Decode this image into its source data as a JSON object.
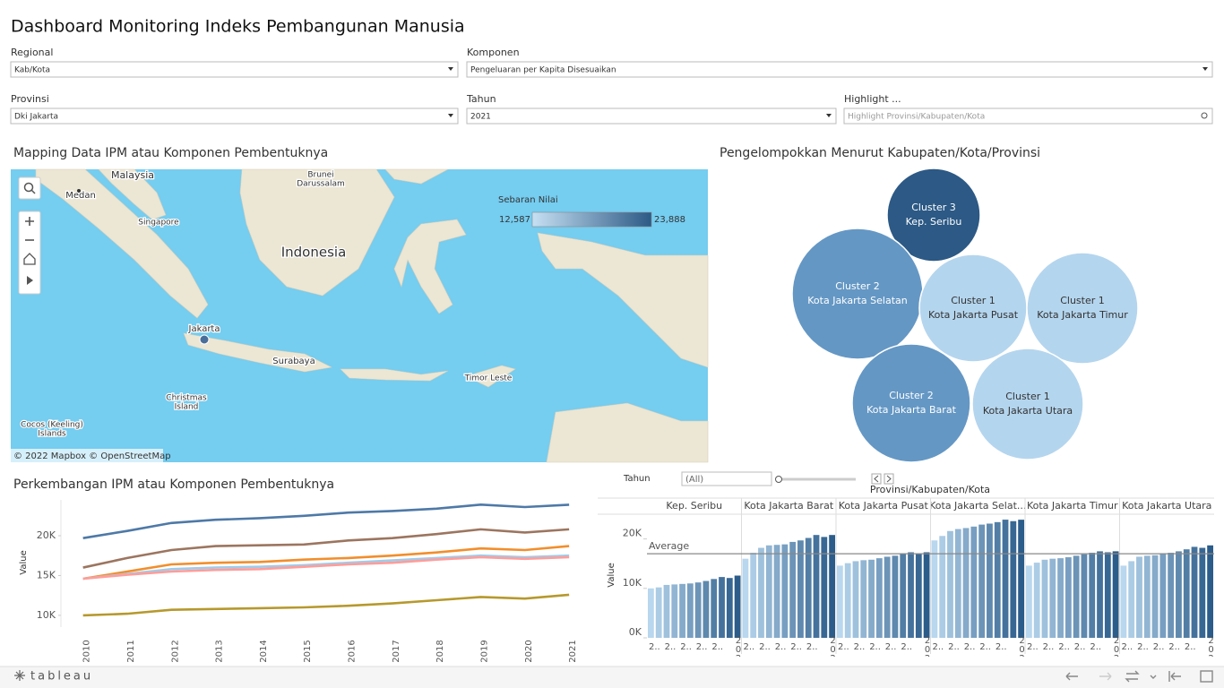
{
  "header": {
    "title": "Dashboard Monitoring Indeks Pembangunan Manusia"
  },
  "filters": [
    {
      "label": "Regional",
      "value": "Kab/Kota"
    },
    {
      "label": "Komponen",
      "value": "Pengeluaran per Kapita Disesuaikan"
    },
    {
      "label": "Provinsi",
      "value": "Dki Jakarta"
    },
    {
      "label": "Tahun",
      "value": "2021"
    },
    {
      "label": "Highlight ...",
      "placeholder": "Highlight Provinsi/Kabupaten/Kota"
    }
  ],
  "map": {
    "title": "Mapping Data IPM atau Komponen Pembentuknya",
    "legend": {
      "title": "Sebaran Nilai",
      "min": {
        "value": 12587,
        "label": "12,587"
      },
      "max": {
        "value": 23888,
        "label": "23,888"
      },
      "colors": [
        "#c6e0f3",
        "#2c5985"
      ]
    },
    "places": [
      {
        "lines": [
          "Malaysia"
        ]
      },
      {
        "lines": [
          "Medan"
        ]
      },
      {
        "lines": [
          "Brunei",
          "Darussalam"
        ]
      },
      {
        "lines": [
          "Singapore"
        ]
      },
      {
        "lines": [
          "Indonesia"
        ]
      },
      {
        "lines": [
          "Jakarta"
        ]
      },
      {
        "lines": [
          "Surabaya"
        ]
      },
      {
        "lines": [
          "Timor Leste"
        ]
      },
      {
        "lines": [
          "Christmas",
          "Island"
        ]
      },
      {
        "lines": [
          "Cocos (Keeling)",
          "Islands"
        ]
      }
    ],
    "attribution": "© 2022 Mapbox  © OpenStreetMap"
  },
  "clusters": {
    "title": "Pengelompokkan Menurut Kabupaten/Kota/Provinsi",
    "colors": {
      "Cluster 1": "#b4d5ee",
      "Cluster 2": "#6497c4",
      "Cluster 3": "#2c5985"
    },
    "nodes": [
      {
        "cluster": "Cluster 3",
        "name": "Kep. Seribu"
      },
      {
        "cluster": "Cluster 2",
        "name": "Kota Jakarta Selatan"
      },
      {
        "cluster": "Cluster 1",
        "name": "Kota Jakarta Pusat"
      },
      {
        "cluster": "Cluster 1",
        "name": "Kota Jakarta Timur"
      },
      {
        "cluster": "Cluster 2",
        "name": "Kota Jakarta Barat"
      },
      {
        "cluster": "Cluster 1",
        "name": "Kota Jakarta Utara"
      }
    ]
  },
  "chart_data": [
    {
      "type": "line",
      "title": "Perkembangan IPM atau Komponen Pembentuknya",
      "y_label": "Value",
      "x": [
        2010,
        2011,
        2012,
        2013,
        2014,
        2015,
        2016,
        2017,
        2018,
        2019,
        2020,
        2021
      ],
      "xlim": [
        2009.5,
        2021.2
      ],
      "xticks": [
        2010,
        2011,
        2012,
        2013,
        2014,
        2015,
        2016,
        2017,
        2018,
        2019,
        2020,
        2021
      ],
      "ylim": [
        6500,
        24500
      ],
      "yticks": [
        {
          "value": 10000,
          "label": "10K"
        },
        {
          "value": 15000,
          "label": "15K"
        },
        {
          "value": 20000,
          "label": "20K"
        }
      ],
      "series": [
        {
          "color": "#4e79a7",
          "values": [
            19700,
            20600,
            21600,
            22000,
            22200,
            22500,
            22900,
            23100,
            23400,
            23900,
            23600,
            23888
          ]
        },
        {
          "color": "#9c755f",
          "values": [
            16000,
            17200,
            18200,
            18700,
            18800,
            18900,
            19400,
            19700,
            20200,
            20800,
            20400,
            20800
          ]
        },
        {
          "color": "#f28e2b",
          "values": [
            14600,
            15500,
            16400,
            16600,
            16700,
            17000,
            17200,
            17500,
            17900,
            18400,
            18200,
            18700
          ]
        },
        {
          "color": "#a0cbe8",
          "values": [
            14600,
            15200,
            15800,
            16000,
            16100,
            16300,
            16600,
            16900,
            17200,
            17500,
            17300,
            17500
          ]
        },
        {
          "color": "#ff9d9a",
          "values": [
            14600,
            15100,
            15500,
            15700,
            15800,
            16100,
            16400,
            16600,
            17000,
            17300,
            17100,
            17300
          ]
        },
        {
          "color": "#b6992d",
          "values": [
            10000,
            10200,
            10700,
            10800,
            10900,
            11000,
            11200,
            11500,
            11900,
            12300,
            12100,
            12587
          ]
        }
      ]
    },
    {
      "type": "bar",
      "header": "Provinsi/Kabupaten/Kota",
      "filter_label": "Tahun",
      "filter_value": "(All)",
      "y_label": "Value",
      "x": [
        2010,
        2011,
        2012,
        2013,
        2014,
        2015,
        2016,
        2017,
        2018,
        2019,
        2020,
        2021
      ],
      "xticks": [
        {
          "value": 2010,
          "label": "2.."
        },
        {
          "value": 2012,
          "label": "2.."
        },
        {
          "value": 2014,
          "label": "2.."
        },
        {
          "value": 2016,
          "label": "2.."
        },
        {
          "value": 2018,
          "label": "2.."
        },
        2021
      ],
      "ylim": [
        0,
        25000
      ],
      "yticks": [
        {
          "value": 0,
          "label": "0K"
        },
        {
          "value": 10000,
          "label": "10K"
        },
        {
          "value": 20000,
          "label": "20K"
        }
      ],
      "average": {
        "label": "Average",
        "value": 17000
      },
      "colors": [
        "#b9d7ee",
        "#2b5c8a"
      ],
      "panels": [
        {
          "name": "Kep. Seribu",
          "values": [
            10000,
            10200,
            10700,
            10800,
            10900,
            11000,
            11200,
            11500,
            11900,
            12300,
            12100,
            12587
          ]
        },
        {
          "name": "Kota Jakarta Barat",
          "values": [
            16000,
            17200,
            18200,
            18700,
            18800,
            18900,
            19400,
            19700,
            20200,
            20800,
            20400,
            20800
          ]
        },
        {
          "name": "Kota Jakarta Pusat",
          "values": [
            14600,
            15100,
            15500,
            15700,
            15800,
            16100,
            16400,
            16600,
            17000,
            17300,
            17100,
            17300
          ]
        },
        {
          "name": "Kota Jakarta Selat...",
          "values": [
            19700,
            20600,
            21600,
            22000,
            22200,
            22500,
            22900,
            23100,
            23400,
            23900,
            23600,
            23888
          ]
        },
        {
          "name": "Kota Jakarta Timur",
          "values": [
            14600,
            15200,
            15800,
            16000,
            16100,
            16300,
            16600,
            16900,
            17200,
            17500,
            17300,
            17500
          ]
        },
        {
          "name": "Kota Jakarta Utara",
          "values": [
            14600,
            15500,
            16400,
            16600,
            16700,
            17000,
            17200,
            17500,
            17900,
            18400,
            18200,
            18700
          ]
        }
      ]
    }
  ],
  "footer": {
    "logo": "tableau"
  }
}
